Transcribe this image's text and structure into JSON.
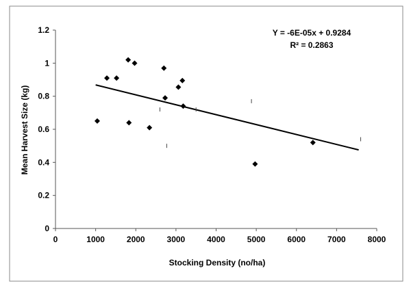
{
  "chart_data": {
    "type": "scatter",
    "xlabel": "Stocking Density (no/ha)",
    "ylabel": "Mean Harvest Size (kg)",
    "xlim": [
      0,
      8000
    ],
    "ylim": [
      0,
      1.2
    ],
    "xticks": [
      "0",
      "1000",
      "2000",
      "3000",
      "4000",
      "5000",
      "6000",
      "7000",
      "8000"
    ],
    "yticks": [
      "0",
      "0.2",
      "0.4",
      "0.6",
      "0.8",
      "1",
      "1.2"
    ],
    "grid": false,
    "points": [
      {
        "x": 1040,
        "y": 0.65
      },
      {
        "x": 1280,
        "y": 0.91
      },
      {
        "x": 1520,
        "y": 0.91
      },
      {
        "x": 1810,
        "y": 1.02
      },
      {
        "x": 1970,
        "y": 1.0
      },
      {
        "x": 1830,
        "y": 0.64
      },
      {
        "x": 2340,
        "y": 0.61
      },
      {
        "x": 2700,
        "y": 0.97
      },
      {
        "x": 2730,
        "y": 0.79
      },
      {
        "x": 3060,
        "y": 0.855
      },
      {
        "x": 3160,
        "y": 0.895
      },
      {
        "x": 3180,
        "y": 0.74
      },
      {
        "x": 4970,
        "y": 0.39
      },
      {
        "x": 6410,
        "y": 0.52
      }
    ],
    "minor_marks": [
      {
        "x": 2600,
        "y": 0.72
      },
      {
        "x": 3500,
        "y": 0.72
      },
      {
        "x": 2770,
        "y": 0.5
      },
      {
        "x": 4880,
        "y": 0.77
      },
      {
        "x": 7600,
        "y": 0.54
      }
    ],
    "trendline": {
      "slope": -6e-05,
      "intercept": 0.9284,
      "x_range": [
        1000,
        7550
      ]
    },
    "annotations": [
      "Y = -6E-05x + 0.9284",
      "R² = 0.2863"
    ],
    "colors": {
      "marker": "#000000",
      "line": "#000000",
      "border": "#888888"
    }
  }
}
